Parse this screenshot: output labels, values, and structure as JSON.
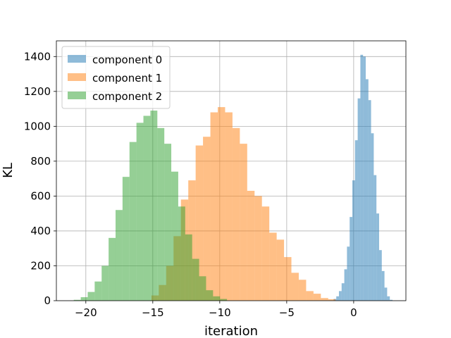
{
  "chart_data": {
    "type": "histogram",
    "xlabel": "iteration",
    "ylabel": "KL",
    "xlim": [
      -22.2,
      3.9
    ],
    "ylim": [
      0,
      1490
    ],
    "x_ticks": [
      -20,
      -15,
      -10,
      -5,
      0
    ],
    "x_tick_labels": [
      "−20",
      "−15",
      "−10",
      "−5",
      "0"
    ],
    "y_ticks": [
      0,
      200,
      400,
      600,
      800,
      1000,
      1200,
      1400
    ],
    "y_tick_labels": [
      "0",
      "200",
      "400",
      "600",
      "800",
      "1000",
      "1200",
      "1400"
    ],
    "grid": true,
    "legend_position": "top-left",
    "alpha": 0.5,
    "series": [
      {
        "name": "component 0",
        "color": "#1f77b4",
        "bin_start": -1.5,
        "bin_width": 0.2,
        "counts": [
          10,
          25,
          55,
          100,
          180,
          310,
          480,
          690,
          920,
          1160,
          1410,
          1400,
          1270,
          1150,
          960,
          720,
          500,
          290,
          170,
          75,
          25,
          5
        ]
      },
      {
        "name": "component 1",
        "color": "#ff7f0e",
        "bin_start": -15.1,
        "bin_width": 0.55,
        "counts": [
          30,
          90,
          200,
          370,
          580,
          690,
          890,
          940,
          1080,
          1110,
          1080,
          990,
          900,
          630,
          600,
          540,
          390,
          350,
          250,
          160,
          120,
          55,
          40,
          15,
          8
        ]
      },
      {
        "name": "component 2",
        "color": "#2ca02c",
        "bin_start": -20.9,
        "bin_width": 0.52,
        "counts": [
          5,
          20,
          50,
          110,
          200,
          360,
          520,
          710,
          910,
          1020,
          1060,
          1090,
          990,
          900,
          740,
          540,
          380,
          240,
          140,
          60,
          25,
          10
        ]
      }
    ]
  }
}
